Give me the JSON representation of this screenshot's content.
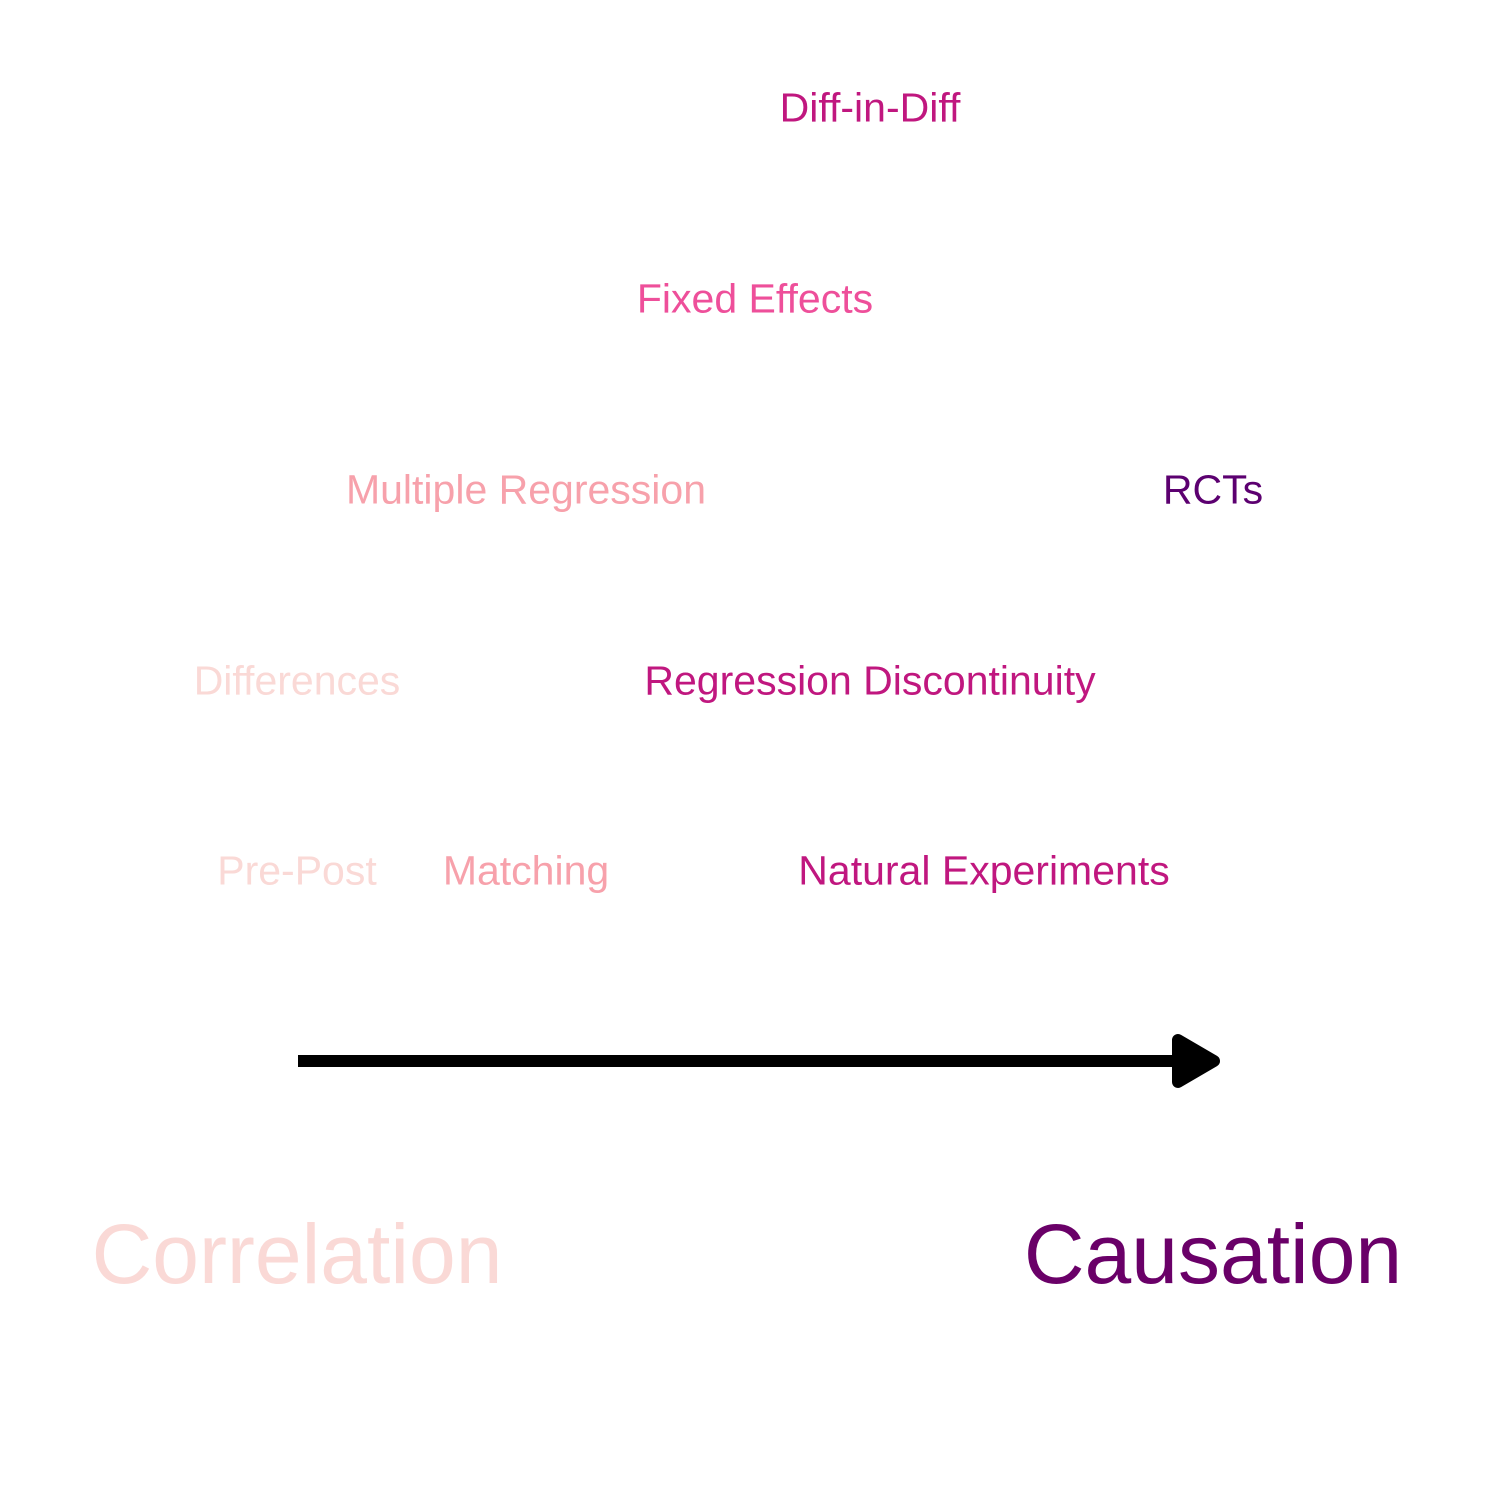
{
  "diagram": {
    "arrow_direction": "left-to-right",
    "arrow_color": "#000000",
    "methods": [
      {
        "label": "Diff-in-Diff",
        "color": "#c0177f"
      },
      {
        "label": "Fixed Effects",
        "color": "#ee4f9a"
      },
      {
        "label": "Multiple Regression",
        "color": "#f7a1ab"
      },
      {
        "label": "RCTs",
        "color": "#5c0070"
      },
      {
        "label": "Differences",
        "color": "#fad9d6"
      },
      {
        "label": "Regression Discontinuity",
        "color": "#c0177f"
      },
      {
        "label": "Pre-Post",
        "color": "#fad9d6"
      },
      {
        "label": "Matching",
        "color": "#f7a1ab"
      },
      {
        "label": "Natural Experiments",
        "color": "#c0177f"
      }
    ],
    "poles": {
      "left": {
        "label": "Correlation",
        "color": "#fad9d6"
      },
      "right": {
        "label": "Causation",
        "color": "#6a0068"
      }
    }
  }
}
